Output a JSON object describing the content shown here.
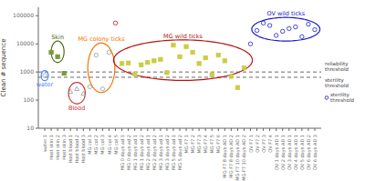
{
  "chart_data": {
    "type": "scatter",
    "ylabel": "Clean # sequence",
    "log": "y",
    "ylim": [
      10,
      200000
    ],
    "yticks": [
      10,
      100,
      1000,
      10000,
      100000
    ],
    "categories": [
      "water 1",
      "Host skin 1",
      "Host skin 2",
      "Host skin 3",
      "Host blood 1",
      "Host blood 2",
      "Host blood 3",
      "MG col 1",
      "MG col 2",
      "MG col 3",
      "MG col 4",
      "MG col 5",
      "MG 0 days ad 1",
      "MG 0 days ad 2",
      "MG 1 days ad 1",
      "MG 1 days ad 2",
      "MG 2 days ad 1",
      "MG 2 days ad 2",
      "MG 3 days ad 1",
      "MG 3 days ad 2",
      "MG 5 days ad 1",
      "MG 5 days ad 2",
      "MG F7 1",
      "MG F7 2",
      "MG F7 3",
      "MG F7 4",
      "MG F7 5",
      "MG F7 6",
      "MG F7 8 days AD 1",
      "MG F7 8 days AD 2",
      "MG F7 10 days AD 1",
      "MG F7 10 days AD 2",
      "OV F7 1",
      "OV F7 2",
      "OV F7 3",
      "OV F7 4",
      "OV 1 days AD 1",
      "OV 2 days AD 1",
      "OV 3 days AD 1",
      "OV 4 days AD 1",
      "OV 5 days AD 1",
      "OV 6 days AD 2",
      "OV 6 days AD 3"
    ],
    "series": [
      {
        "color": "#999999",
        "marker": "open-circle",
        "values": [
          750,
          null,
          null,
          null,
          null,
          null,
          null,
          300,
          4000,
          250,
          5000,
          null,
          null,
          null,
          null,
          null,
          null,
          null,
          null,
          null,
          null,
          null,
          null,
          null,
          null,
          null,
          null,
          null,
          null,
          null,
          null,
          null,
          null,
          null,
          null,
          null,
          null,
          null,
          null,
          null,
          null,
          null,
          null
        ]
      },
      {
        "color": "#7a9a3a",
        "marker": "square",
        "values": [
          null,
          5000,
          3500,
          900,
          null,
          null,
          null,
          null,
          null,
          null,
          null,
          null,
          null,
          null,
          null,
          null,
          null,
          null,
          null,
          null,
          null,
          null,
          null,
          null,
          null,
          null,
          null,
          null,
          null,
          null,
          null,
          null,
          null,
          null,
          null,
          null,
          null,
          null,
          null,
          null,
          null,
          null,
          null
        ]
      },
      {
        "color": "#999999",
        "marker": "open-triangle",
        "values": [
          null,
          null,
          null,
          null,
          200,
          250,
          170,
          null,
          null,
          null,
          null,
          null,
          null,
          null,
          null,
          null,
          null,
          null,
          null,
          null,
          null,
          null,
          null,
          null,
          null,
          null,
          null,
          null,
          null,
          null,
          null,
          null,
          null,
          null,
          null,
          null,
          null,
          null,
          null,
          null,
          null,
          null,
          null
        ]
      },
      {
        "color": "#bb1111",
        "marker": "open-circle",
        "values": [
          null,
          null,
          null,
          null,
          null,
          null,
          null,
          null,
          null,
          null,
          null,
          55000,
          null,
          null,
          null,
          null,
          null,
          null,
          null,
          null,
          null,
          null,
          null,
          null,
          null,
          null,
          null,
          null,
          null,
          null,
          null,
          null,
          null,
          null,
          null,
          null,
          null,
          null,
          null,
          null,
          null,
          null,
          null
        ]
      },
      {
        "color": "#cccc44",
        "marker": "square",
        "values": [
          null,
          null,
          null,
          null,
          null,
          null,
          null,
          null,
          null,
          null,
          null,
          null,
          2000,
          2100,
          850,
          1800,
          2200,
          2500,
          2800,
          950,
          9000,
          3500,
          8000,
          5000,
          2000,
          3200,
          800,
          4000,
          2500,
          700,
          280,
          1400,
          null,
          null,
          null,
          null,
          null,
          null,
          null,
          null,
          null,
          null,
          null
        ]
      },
      {
        "color": "#1a1acc",
        "marker": "open-circle",
        "values": [
          null,
          null,
          null,
          null,
          null,
          null,
          null,
          null,
          null,
          null,
          null,
          null,
          null,
          null,
          null,
          null,
          null,
          null,
          null,
          null,
          null,
          null,
          null,
          null,
          null,
          null,
          null,
          null,
          null,
          null,
          null,
          null,
          10000,
          30000,
          55000,
          45000,
          20000,
          28000,
          35000,
          40000,
          18000,
          50000,
          32000
        ]
      }
    ],
    "ellipses": [
      {
        "label": "Skin",
        "color": "#4a6a1a",
        "x": 2.0,
        "x_radius": 1.0,
        "log_y": 3.72,
        "log_y_radius": 0.38
      },
      {
        "label": "water",
        "color": "#4488ff",
        "x": 0.0,
        "x_radius": 0.55,
        "log_y": 2.87,
        "log_y_radius": 0.18
      },
      {
        "label": "Blood",
        "color": "#cc3333",
        "x": 5.0,
        "x_radius": 1.3,
        "log_y": 2.25,
        "log_y_radius": 0.38
      },
      {
        "label": "MG colony ticks",
        "color": "#ee7700",
        "x": 8.8,
        "x_radius": 2.1,
        "log_y": 3.15,
        "log_y_radius": 0.88
      },
      {
        "label": "MG wild ticks",
        "color": "#bb1111",
        "x": 21.5,
        "x_radius": 10.8,
        "log_y": 3.42,
        "log_y_radius": 0.72
      },
      {
        "label": "OV wild ticks",
        "color": "#1a1acc",
        "x": 37.5,
        "x_radius": 5.3,
        "log_y": 4.52,
        "log_y_radius": 0.42
      }
    ],
    "thresholds": [
      {
        "value": 1000,
        "label": "reliability\nthreshold",
        "color": "#444444"
      },
      {
        "value": 650,
        "label": "sterility\nthreshold",
        "color": "#444444"
      }
    ],
    "annotations": [
      {
        "text": "sterility\nthreshold",
        "color": "#1a1acc",
        "marker": "open-circle"
      }
    ]
  }
}
